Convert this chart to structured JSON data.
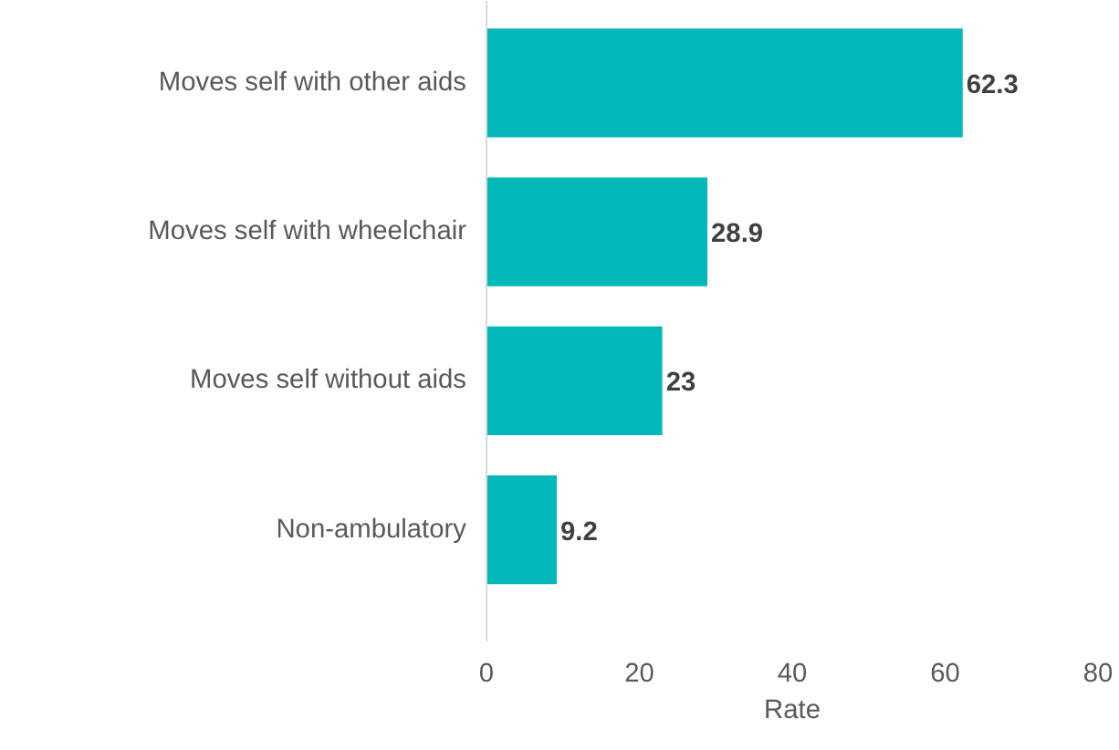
{
  "chart_data": {
    "type": "bar",
    "orientation": "horizontal",
    "categories": [
      "Moves self with other aids",
      "Moves self with wheelchair",
      "Moves self without aids",
      "Non-ambulatory"
    ],
    "values": [
      62.3,
      28.9,
      23,
      9.2
    ],
    "color": "#00b8b8",
    "xlabel": "Rate",
    "xlim": [
      0,
      80
    ],
    "xticks": [
      0,
      20,
      40,
      60,
      80
    ],
    "data_labels": true,
    "grid": false
  }
}
